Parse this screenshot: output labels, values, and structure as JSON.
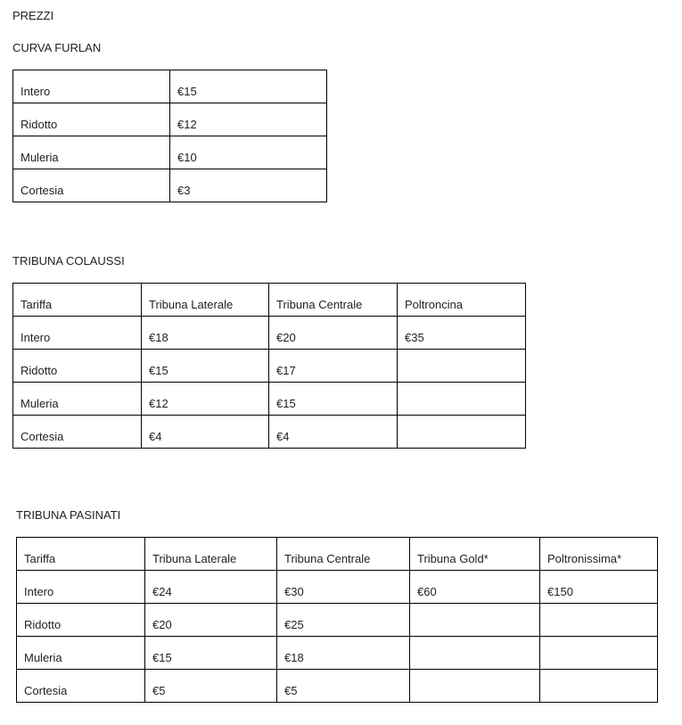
{
  "title": "PREZZI",
  "sections": [
    {
      "heading": "CURVA FURLAN",
      "rows": [
        [
          "Intero",
          "€15"
        ],
        [
          "Ridotto",
          "€12"
        ],
        [
          "Muleria",
          "€10"
        ],
        [
          "Cortesia",
          "€3"
        ]
      ]
    },
    {
      "heading": "TRIBUNA COLAUSSI",
      "rows": [
        [
          "Tariffa",
          "Tribuna Laterale",
          "Tribuna Centrale",
          "Poltroncina"
        ],
        [
          "Intero",
          "€18",
          "€20",
          "€35"
        ],
        [
          "Ridotto",
          "€15",
          "€17",
          ""
        ],
        [
          "Muleria",
          "€12",
          "€15",
          ""
        ],
        [
          "Cortesia",
          "€4",
          "€4",
          ""
        ]
      ]
    },
    {
      "heading": "TRIBUNA PASINATI",
      "rows": [
        [
          "Tariffa",
          "Tribuna Laterale",
          "Tribuna Centrale",
          "Tribuna Gold*",
          "Poltronissima*"
        ],
        [
          "Intero",
          "€24",
          "€30",
          "€60",
          "€150"
        ],
        [
          "Ridotto",
          "€20",
          "€25",
          "",
          ""
        ],
        [
          "Muleria",
          "€15",
          "€18",
          "",
          ""
        ],
        [
          "Cortesia",
          "€5",
          "€5",
          "",
          ""
        ]
      ]
    }
  ]
}
